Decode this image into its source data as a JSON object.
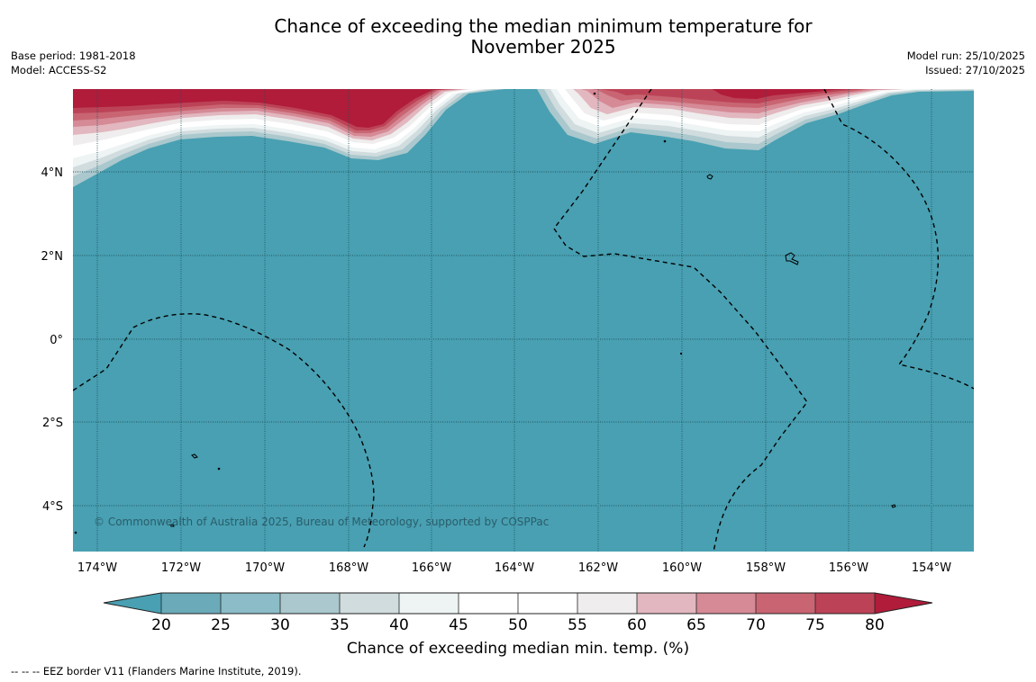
{
  "title": {
    "line1": "Chance of exceeding the median minimum temperature for",
    "line2": "November 2025"
  },
  "meta_left": {
    "base_period": "Base period: 1981-2018",
    "model": "Model: ACCESS-S2"
  },
  "meta_right": {
    "model_run": "Model run: 25/10/2025",
    "issued": "Issued: 27/10/2025"
  },
  "map": {
    "x_ticks": [
      "174°W",
      "172°W",
      "170°W",
      "168°W",
      "166°W",
      "164°W",
      "162°W",
      "160°W",
      "158°W",
      "156°W",
      "154°W"
    ],
    "y_ticks": [
      "4°N",
      "2°N",
      "0°",
      "2°S",
      "4°S"
    ],
    "copyright": "© Commonwealth of Australia 2025, Bureau of Meteorology, supported by COSPPac",
    "background_color": "#48a0b2",
    "warm_color": "#b01c3a"
  },
  "colorbar": {
    "labels": [
      "20",
      "25",
      "30",
      "35",
      "40",
      "45",
      "50",
      "55",
      "60",
      "65",
      "70",
      "75",
      "80"
    ],
    "colors": [
      "#48a0b2",
      "#6aaab9",
      "#8bbcc7",
      "#aac8cd",
      "#d0dcde",
      "#eef3f4",
      "#ffffff",
      "#ffffff",
      "#efeded",
      "#e2b7bf",
      "#d58a96",
      "#c96572",
      "#bc4357",
      "#b01c3a"
    ],
    "title": "Chance of exceeding median min. temp. (%)"
  },
  "footnote": "--  --  -- EEZ border V11 (Flanders Marine Institute, 2019)."
}
